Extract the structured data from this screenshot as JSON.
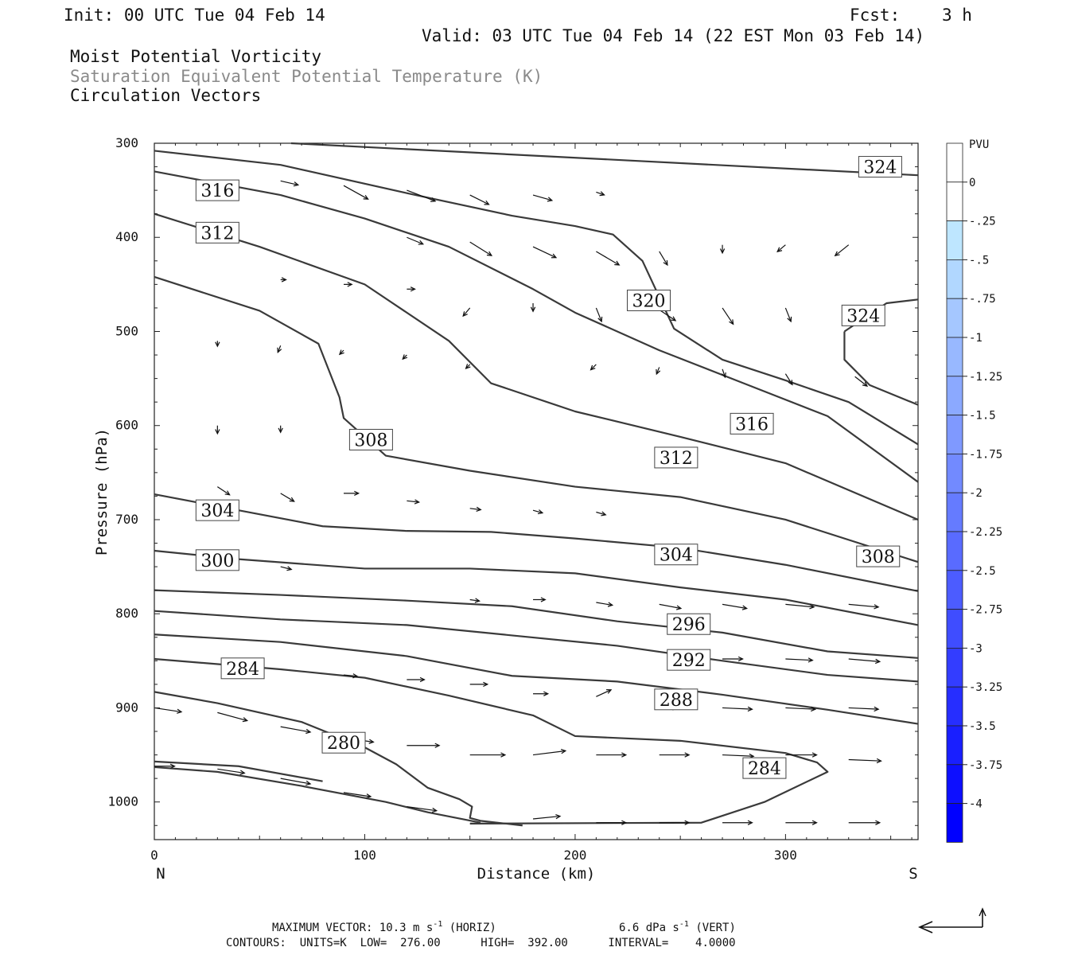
{
  "header": {
    "init": "Init: 00 UTC Tue 04 Feb 14",
    "fcst_label": "Fcst:",
    "fcst_value": "3 h",
    "valid": "Valid: 03 UTC Tue 04 Feb 14 (22 EST Mon 03 Feb 14)",
    "field1": "Moist Potential Vorticity",
    "field2": "Saturation Equivalent Potential Temperature (K)",
    "field3": "Circulation Vectors"
  },
  "colors": {
    "field2_text": "#8a8a8a",
    "contour": "#3a3a3a",
    "colorbar_top": "#ffffff",
    "colorbar_bottom": "#0000ff"
  },
  "chart_data": {
    "type": "contour",
    "xlabel": "Distance (km)",
    "ylabel": "Pressure (hPa)",
    "xlim": [
      0,
      363
    ],
    "ylim": [
      300,
      1040
    ],
    "y_inverted": true,
    "x_ticks": [
      "0",
      "100",
      "200",
      "300"
    ],
    "y_ticks": [
      "300",
      "400",
      "500",
      "600",
      "700",
      "800",
      "900",
      "1000"
    ],
    "x_endpoints": {
      "left": "N",
      "right": "S"
    },
    "colorbar": {
      "title": "PVU",
      "levels": [
        "0",
        "-.25",
        "-.5",
        "-.75",
        "-1",
        "-1.25",
        "-1.5",
        "-1.75",
        "-2",
        "-2.25",
        "-2.5",
        "-2.75",
        "-3",
        "-3.25",
        "-3.5",
        "-3.75",
        "-4"
      ]
    },
    "contours": [
      {
        "theta": 324,
        "points": [
          [
            65,
            300
          ],
          [
            363,
            334
          ]
        ]
      },
      {
        "theta": 320,
        "points": [
          [
            0,
            308
          ],
          [
            60,
            323
          ],
          [
            120,
            353
          ],
          [
            170,
            377
          ],
          [
            200,
            388
          ],
          [
            218,
            397
          ],
          [
            232,
            425
          ],
          [
            247,
            497
          ],
          [
            270,
            530
          ],
          [
            300,
            552
          ],
          [
            330,
            575
          ],
          [
            363,
            620
          ]
        ]
      },
      {
        "theta": 324,
        "points": [
          [
            328,
            500
          ],
          [
            328,
            530
          ],
          [
            340,
            557
          ],
          [
            363,
            578
          ],
          [
            363,
            578
          ]
        ]
      },
      {
        "theta": 324,
        "points": [
          [
            328,
            500
          ],
          [
            348,
            470
          ],
          [
            363,
            466
          ]
        ]
      },
      {
        "theta": 316,
        "points": [
          [
            0,
            330
          ],
          [
            60,
            355
          ],
          [
            100,
            380
          ],
          [
            140,
            410
          ],
          [
            180,
            455
          ],
          [
            200,
            480
          ],
          [
            240,
            520
          ],
          [
            280,
            555
          ],
          [
            320,
            590
          ],
          [
            363,
            660
          ]
        ]
      },
      {
        "theta": 312,
        "points": [
          [
            0,
            375
          ],
          [
            50,
            410
          ],
          [
            100,
            450
          ],
          [
            140,
            510
          ],
          [
            160,
            555
          ],
          [
            200,
            585
          ],
          [
            250,
            612
          ],
          [
            300,
            640
          ],
          [
            363,
            700
          ]
        ]
      },
      {
        "theta": 308,
        "points": [
          [
            0,
            442
          ],
          [
            50,
            478
          ],
          [
            78,
            513
          ],
          [
            88,
            570
          ],
          [
            90,
            592
          ],
          [
            110,
            632
          ],
          [
            150,
            648
          ],
          [
            200,
            665
          ],
          [
            250,
            676
          ],
          [
            300,
            700
          ],
          [
            363,
            745
          ]
        ]
      },
      {
        "theta": 304,
        "points": [
          [
            0,
            673
          ],
          [
            40,
            690
          ],
          [
            80,
            707
          ],
          [
            120,
            712
          ],
          [
            160,
            713
          ],
          [
            200,
            720
          ],
          [
            250,
            730
          ],
          [
            300,
            748
          ],
          [
            363,
            776
          ]
        ]
      },
      {
        "theta": 300,
        "points": [
          [
            0,
            733
          ],
          [
            40,
            742
          ],
          [
            100,
            752
          ],
          [
            150,
            752
          ],
          [
            200,
            757
          ],
          [
            250,
            772
          ],
          [
            300,
            785
          ],
          [
            363,
            812
          ]
        ]
      },
      {
        "theta": 296,
        "points": [
          [
            0,
            775
          ],
          [
            60,
            780
          ],
          [
            120,
            786
          ],
          [
            170,
            792
          ],
          [
            220,
            808
          ],
          [
            270,
            820
          ],
          [
            320,
            840
          ],
          [
            363,
            847
          ]
        ]
      },
      {
        "theta": 292,
        "points": [
          [
            0,
            797
          ],
          [
            60,
            806
          ],
          [
            120,
            812
          ],
          [
            170,
            823
          ],
          [
            220,
            834
          ],
          [
            270,
            850
          ],
          [
            320,
            865
          ],
          [
            363,
            872
          ]
        ]
      },
      {
        "theta": 288,
        "points": [
          [
            0,
            822
          ],
          [
            60,
            830
          ],
          [
            120,
            845
          ],
          [
            170,
            866
          ],
          [
            220,
            872
          ],
          [
            270,
            886
          ],
          [
            320,
            902
          ],
          [
            363,
            917
          ]
        ]
      },
      {
        "theta": 284,
        "points": [
          [
            0,
            848
          ],
          [
            60,
            859
          ],
          [
            100,
            868
          ],
          [
            140,
            887
          ],
          [
            180,
            908
          ],
          [
            200,
            930
          ],
          [
            250,
            935
          ],
          [
            300,
            948
          ],
          [
            315,
            958
          ],
          [
            320,
            968
          ],
          [
            290,
            1000
          ],
          [
            260,
            1022
          ],
          [
            150,
            1023
          ]
        ]
      },
      {
        "theta": 280,
        "points": [
          [
            0,
            883
          ],
          [
            30,
            895
          ],
          [
            70,
            915
          ],
          [
            100,
            942
          ],
          [
            115,
            960
          ],
          [
            130,
            985
          ],
          [
            145,
            997
          ],
          [
            151,
            1005
          ],
          [
            150,
            1017
          ],
          [
            155,
            1020
          ],
          [
            175,
            1025
          ]
        ]
      },
      {
        "theta": 276,
        "points": [
          [
            0,
            963
          ],
          [
            30,
            968
          ],
          [
            70,
            983
          ],
          [
            110,
            1000
          ],
          [
            130,
            1011
          ],
          [
            155,
            1022
          ]
        ]
      },
      {
        "theta": 276,
        "points": [
          [
            0,
            957
          ],
          [
            40,
            962
          ],
          [
            80,
            978
          ]
        ]
      }
    ],
    "contour_labels": [
      {
        "text": "324",
        "x": 345,
        "y": 325
      },
      {
        "text": "316",
        "x": 30,
        "y": 350
      },
      {
        "text": "312",
        "x": 30,
        "y": 395
      },
      {
        "text": "320",
        "x": 235,
        "y": 467
      },
      {
        "text": "324",
        "x": 337,
        "y": 483
      },
      {
        "text": "316",
        "x": 284,
        "y": 598
      },
      {
        "text": "308",
        "x": 103,
        "y": 615
      },
      {
        "text": "312",
        "x": 248,
        "y": 634
      },
      {
        "text": "304",
        "x": 30,
        "y": 690
      },
      {
        "text": "304",
        "x": 248,
        "y": 737
      },
      {
        "text": "308",
        "x": 344,
        "y": 739
      },
      {
        "text": "300",
        "x": 30,
        "y": 743
      },
      {
        "text": "296",
        "x": 254,
        "y": 811
      },
      {
        "text": "292",
        "x": 254,
        "y": 849
      },
      {
        "text": "284",
        "x": 42,
        "y": 858
      },
      {
        "text": "288",
        "x": 248,
        "y": 891
      },
      {
        "text": "280",
        "x": 90,
        "y": 937
      },
      {
        "text": "284",
        "x": 290,
        "y": 964
      }
    ],
    "vectors": [
      {
        "x": 60,
        "y": 340,
        "u": 13,
        "v": 3
      },
      {
        "x": 90,
        "y": 345,
        "u": 18,
        "v": 10
      },
      {
        "x": 120,
        "y": 350,
        "u": 21,
        "v": 8
      },
      {
        "x": 150,
        "y": 355,
        "u": 14,
        "v": 7
      },
      {
        "x": 180,
        "y": 355,
        "u": 14,
        "v": 4
      },
      {
        "x": 210,
        "y": 352,
        "u": 6,
        "v": 2
      },
      {
        "x": 120,
        "y": 400,
        "u": 12,
        "v": 5
      },
      {
        "x": 150,
        "y": 405,
        "u": 16,
        "v": 10
      },
      {
        "x": 180,
        "y": 410,
        "u": 17,
        "v": 8
      },
      {
        "x": 210,
        "y": 415,
        "u": 17,
        "v": 10
      },
      {
        "x": 240,
        "y": 415,
        "u": 6,
        "v": 10
      },
      {
        "x": 270,
        "y": 408,
        "u": 0,
        "v": 6
      },
      {
        "x": 300,
        "y": 408,
        "u": -6,
        "v": 5
      },
      {
        "x": 330,
        "y": 408,
        "u": -10,
        "v": 8
      },
      {
        "x": 150,
        "y": 475,
        "u": -5,
        "v": 6
      },
      {
        "x": 210,
        "y": 475,
        "u": 4,
        "v": 10
      },
      {
        "x": 240,
        "y": 477,
        "u": 12,
        "v": 8
      },
      {
        "x": 270,
        "y": 475,
        "u": 8,
        "v": 12
      },
      {
        "x": 300,
        "y": 475,
        "u": 4,
        "v": 10
      },
      {
        "x": 270,
        "y": 540,
        "u": 2,
        "v": 6
      },
      {
        "x": 300,
        "y": 545,
        "u": 5,
        "v": 8
      },
      {
        "x": 333,
        "y": 548,
        "u": 9,
        "v": 7
      },
      {
        "x": 30,
        "y": 665,
        "u": 9,
        "v": 6
      },
      {
        "x": 60,
        "y": 672,
        "u": 10,
        "v": 6
      },
      {
        "x": 90,
        "y": 672,
        "u": 11,
        "v": 0
      },
      {
        "x": 120,
        "y": 680,
        "u": 9,
        "v": 1
      },
      {
        "x": 150,
        "y": 688,
        "u": 8,
        "v": 1
      },
      {
        "x": 180,
        "y": 690,
        "u": 7,
        "v": 2
      },
      {
        "x": 210,
        "y": 692,
        "u": 7,
        "v": 2
      },
      {
        "x": 30,
        "y": 745,
        "u": 8,
        "v": 3
      },
      {
        "x": 60,
        "y": 750,
        "u": 8,
        "v": 2
      },
      {
        "x": 150,
        "y": 785,
        "u": 7,
        "v": 1
      },
      {
        "x": 180,
        "y": 785,
        "u": 9,
        "v": 0
      },
      {
        "x": 210,
        "y": 788,
        "u": 12,
        "v": 2
      },
      {
        "x": 240,
        "y": 790,
        "u": 16,
        "v": 3
      },
      {
        "x": 270,
        "y": 790,
        "u": 18,
        "v": 3
      },
      {
        "x": 300,
        "y": 790,
        "u": 21,
        "v": 2
      },
      {
        "x": 330,
        "y": 790,
        "u": 22,
        "v": 2
      },
      {
        "x": 270,
        "y": 848,
        "u": 15,
        "v": 0
      },
      {
        "x": 300,
        "y": 848,
        "u": 20,
        "v": 1
      },
      {
        "x": 330,
        "y": 848,
        "u": 23,
        "v": 2
      },
      {
        "x": 90,
        "y": 865,
        "u": 10,
        "v": 1
      },
      {
        "x": 120,
        "y": 870,
        "u": 13,
        "v": 0
      },
      {
        "x": 150,
        "y": 875,
        "u": 13,
        "v": 0
      },
      {
        "x": 180,
        "y": 885,
        "u": 11,
        "v": 0
      },
      {
        "x": 210,
        "y": 888,
        "u": 11,
        "v": -5
      },
      {
        "x": 240,
        "y": 900,
        "u": 13,
        "v": 0
      },
      {
        "x": 270,
        "y": 900,
        "u": 22,
        "v": 1
      },
      {
        "x": 300,
        "y": 900,
        "u": 22,
        "v": 1
      },
      {
        "x": 330,
        "y": 900,
        "u": 22,
        "v": 1
      },
      {
        "x": 0,
        "y": 900,
        "u": 20,
        "v": 3
      },
      {
        "x": 30,
        "y": 905,
        "u": 22,
        "v": 6
      },
      {
        "x": 60,
        "y": 920,
        "u": 22,
        "v": 4
      },
      {
        "x": 90,
        "y": 932,
        "u": 22,
        "v": 3
      },
      {
        "x": 120,
        "y": 940,
        "u": 24,
        "v": 0
      },
      {
        "x": 150,
        "y": 950,
        "u": 26,
        "v": 0
      },
      {
        "x": 180,
        "y": 950,
        "u": 24,
        "v": -3
      },
      {
        "x": 210,
        "y": 950,
        "u": 22,
        "v": 0
      },
      {
        "x": 240,
        "y": 950,
        "u": 22,
        "v": 0
      },
      {
        "x": 270,
        "y": 950,
        "u": 23,
        "v": 1
      },
      {
        "x": 300,
        "y": 950,
        "u": 23,
        "v": 0
      },
      {
        "x": 330,
        "y": 955,
        "u": 24,
        "v": 1
      },
      {
        "x": 0,
        "y": 962,
        "u": 15,
        "v": 0
      },
      {
        "x": 30,
        "y": 965,
        "u": 20,
        "v": 3
      },
      {
        "x": 60,
        "y": 975,
        "u": 22,
        "v": 4
      },
      {
        "x": 90,
        "y": 990,
        "u": 20,
        "v": 3
      },
      {
        "x": 120,
        "y": 1005,
        "u": 22,
        "v": 3
      },
      {
        "x": 180,
        "y": 1018,
        "u": 20,
        "v": -2
      },
      {
        "x": 210,
        "y": 1022,
        "u": 22,
        "v": 0
      },
      {
        "x": 240,
        "y": 1022,
        "u": 22,
        "v": 0
      },
      {
        "x": 270,
        "y": 1022,
        "u": 22,
        "v": 0
      },
      {
        "x": 300,
        "y": 1022,
        "u": 23,
        "v": 0
      },
      {
        "x": 330,
        "y": 1022,
        "u": 23,
        "v": 0
      },
      {
        "x": 30,
        "y": 600,
        "u": 0,
        "v": 6
      },
      {
        "x": 60,
        "y": 600,
        "u": 0,
        "v": 5
      },
      {
        "x": 30,
        "y": 510,
        "u": 0,
        "v": 4
      },
      {
        "x": 60,
        "y": 515,
        "u": -2,
        "v": 5
      },
      {
        "x": 90,
        "y": 520,
        "u": -3,
        "v": 3
      },
      {
        "x": 120,
        "y": 525,
        "u": -3,
        "v": 3
      },
      {
        "x": 150,
        "y": 535,
        "u": -3,
        "v": 3
      },
      {
        "x": 210,
        "y": 535,
        "u": -4,
        "v": 4
      },
      {
        "x": 240,
        "y": 538,
        "u": -2,
        "v": 5
      },
      {
        "x": 60,
        "y": 445,
        "u": 4,
        "v": 0
      },
      {
        "x": 90,
        "y": 450,
        "u": 6,
        "v": 0
      },
      {
        "x": 120,
        "y": 455,
        "u": 6,
        "v": 0
      },
      {
        "x": 180,
        "y": 470,
        "u": 0,
        "v": 6
      }
    ]
  },
  "footer": {
    "line1_a": "MAXIMUM VECTOR:  10.3 m s",
    "line1_a_sup": "-1",
    "line1_b": " (HORIZ)",
    "line1_c": "6.6 dPa s",
    "line1_c_sup": "-1",
    "line1_d": " (VERT)",
    "line2": "CONTOURS:  UNITS=K  LOW=  276.00      HIGH=  392.00      INTERVAL=    4.0000"
  }
}
